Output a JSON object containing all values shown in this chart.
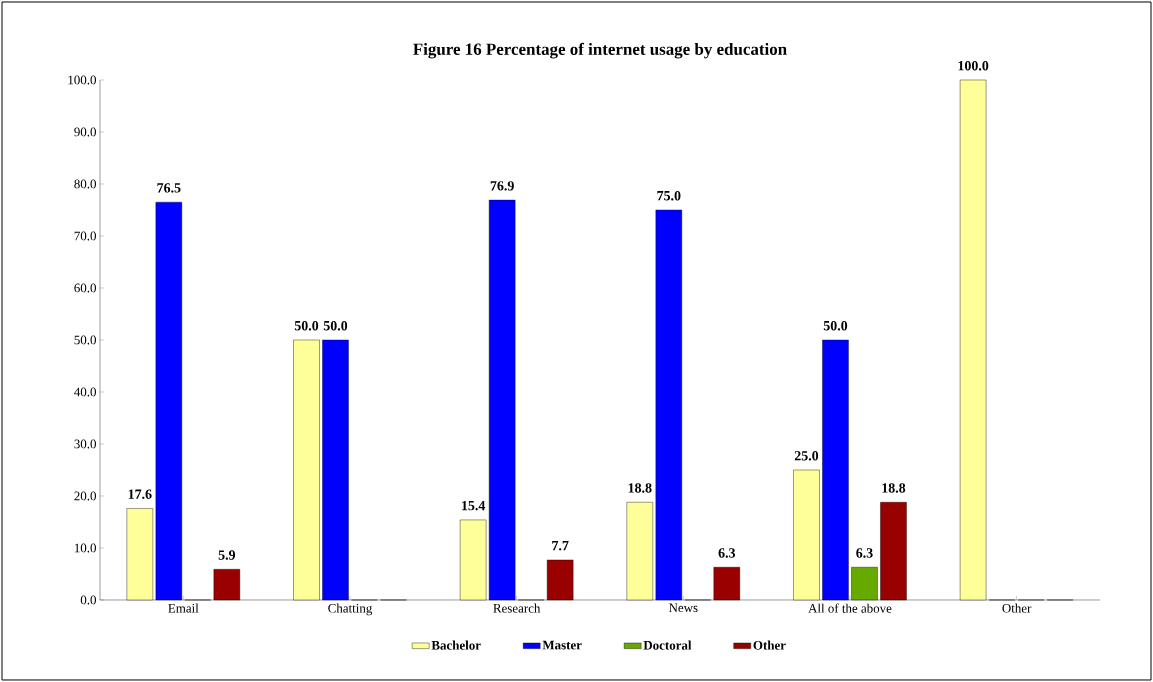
{
  "chart_data": {
    "type": "bar",
    "title": "Figure 16 Percentage of internet usage by education",
    "categories": [
      "Email",
      "Chatting",
      "Research",
      "News",
      "All of the above",
      "Other"
    ],
    "series": [
      {
        "name": "Bachelor",
        "color": "#ffff99",
        "values": [
          17.6,
          50.0,
          15.4,
          18.8,
          25.0,
          100.0
        ],
        "value_labels": [
          "17.6",
          "50.0",
          "15.4",
          "18.8",
          "25.0",
          "100.0"
        ]
      },
      {
        "name": "Master",
        "color": "#0000ff",
        "values": [
          76.5,
          50.0,
          76.9,
          75.0,
          50.0,
          0
        ],
        "value_labels": [
          "76.5",
          "50.0",
          "76.9",
          "75.0",
          "50.0",
          null
        ]
      },
      {
        "name": "Doctoral",
        "color": "#66aa00",
        "values": [
          0,
          0,
          0,
          0,
          6.3,
          0
        ],
        "value_labels": [
          null,
          null,
          null,
          null,
          "6.3",
          null
        ]
      },
      {
        "name": "Other",
        "color": "#990000",
        "values": [
          5.9,
          0,
          7.7,
          6.3,
          18.8,
          0
        ],
        "value_labels": [
          "5.9",
          null,
          "7.7",
          "6.3",
          "18.8",
          null
        ]
      }
    ],
    "ylim": [
      0,
      100
    ],
    "yticks": [
      {
        "value": 0,
        "label": "0.0"
      },
      {
        "value": 10,
        "label": "10.0"
      },
      {
        "value": 20,
        "label": "20.0"
      },
      {
        "value": 30,
        "label": "30.0"
      },
      {
        "value": 40,
        "label": "40.0"
      },
      {
        "value": 50,
        "label": "50.0"
      },
      {
        "value": 60,
        "label": "60.0"
      },
      {
        "value": 70,
        "label": "70.0"
      },
      {
        "value": 80,
        "label": "80.0"
      },
      {
        "value": 90,
        "label": "90.0"
      },
      {
        "value": 100,
        "label": "100.0"
      }
    ],
    "legend": "bottom"
  }
}
